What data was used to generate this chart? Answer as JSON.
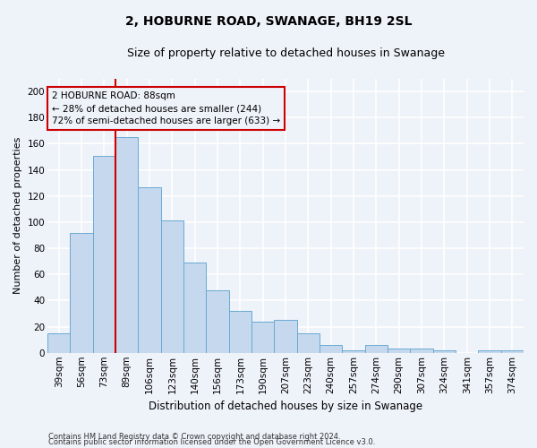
{
  "title1": "2, HOBURNE ROAD, SWANAGE, BH19 2SL",
  "title2": "Size of property relative to detached houses in Swanage",
  "xlabel": "Distribution of detached houses by size in Swanage",
  "ylabel": "Number of detached properties",
  "categories": [
    "39sqm",
    "56sqm",
    "73sqm",
    "89sqm",
    "106sqm",
    "123sqm",
    "140sqm",
    "156sqm",
    "173sqm",
    "190sqm",
    "207sqm",
    "223sqm",
    "240sqm",
    "257sqm",
    "274sqm",
    "290sqm",
    "307sqm",
    "324sqm",
    "341sqm",
    "357sqm",
    "374sqm"
  ],
  "values": [
    15,
    92,
    151,
    165,
    127,
    101,
    69,
    48,
    32,
    24,
    25,
    15,
    6,
    2,
    6,
    3,
    3,
    2,
    0,
    2,
    2
  ],
  "bar_color": "#c5d8ed",
  "bar_edge_color": "#6aaad4",
  "highlight_color": "#cc0000",
  "annotation_line1": "2 HOBURNE ROAD: 88sqm",
  "annotation_line2": "← 28% of detached houses are smaller (244)",
  "annotation_line3": "72% of semi-detached houses are larger (633) →",
  "ylim": [
    0,
    210
  ],
  "yticks": [
    0,
    20,
    40,
    60,
    80,
    100,
    120,
    140,
    160,
    180,
    200
  ],
  "footnote1": "Contains HM Land Registry data © Crown copyright and database right 2024.",
  "footnote2": "Contains public sector information licensed under the Open Government Licence v3.0.",
  "background_color": "#eef2f9",
  "grid_color": "#ffffff",
  "title1_fontsize": 10,
  "title2_fontsize": 9,
  "xlabel_fontsize": 8.5,
  "ylabel_fontsize": 8,
  "tick_fontsize": 7.5,
  "footnote_fontsize": 6,
  "annotation_fontsize": 7.5
}
